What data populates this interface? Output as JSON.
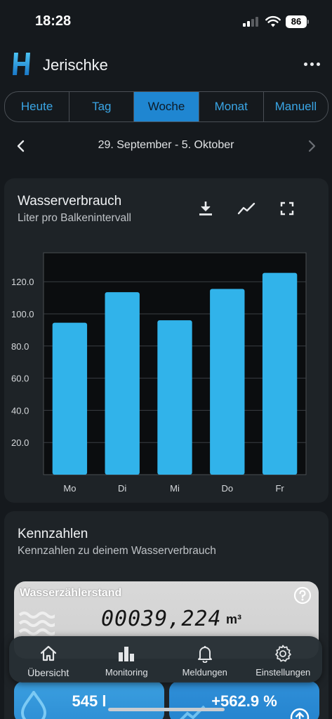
{
  "status_bar": {
    "time": "18:28",
    "battery": "86"
  },
  "header": {
    "title": "Jerischke"
  },
  "period_tabs": [
    {
      "label": "Heute",
      "active": false
    },
    {
      "label": "Tag",
      "active": false
    },
    {
      "label": "Woche",
      "active": true
    },
    {
      "label": "Monat",
      "active": false
    },
    {
      "label": "Manuell",
      "active": false
    }
  ],
  "date_nav": {
    "range": "29. September - 5. Oktober"
  },
  "consumption_card": {
    "title": "Wasserverbrauch",
    "subtitle": "Liter pro Balkenintervall",
    "actions": [
      "download-icon",
      "trend-line-icon",
      "fullscreen-icon"
    ]
  },
  "chart_data": {
    "type": "bar",
    "categories": [
      "Mo",
      "Di",
      "Mi",
      "Do",
      "Fr"
    ],
    "values": [
      94.5,
      113.5,
      96,
      115.5,
      125.5
    ],
    "yticks": [
      "20.0",
      "40.0",
      "60.0",
      "80.0",
      "100.0",
      "120.0"
    ],
    "ylim": [
      0,
      138
    ],
    "grid": true,
    "bar_color": "#31b3ea"
  },
  "kennzahlen": {
    "title": "Kennzahlen",
    "subtitle": "Kennzahlen zu deinem Wasserverbrauch",
    "meter": {
      "label": "Wasserzählerstand",
      "value": "00039,224",
      "unit": "m³"
    },
    "kpis": [
      {
        "value": "545 l"
      },
      {
        "value": "+562.9 %"
      }
    ]
  },
  "tabbar": [
    {
      "label": "Übersicht",
      "icon": "home-icon"
    },
    {
      "label": "Monitoring",
      "icon": "bar-chart-icon"
    },
    {
      "label": "Meldungen",
      "icon": "bell-icon"
    },
    {
      "label": "Einstellungen",
      "icon": "gear-icon"
    }
  ],
  "colors": {
    "accent": "#1f86d1",
    "bar": "#31b3ea",
    "background": "#15191d",
    "card": "#1e2327"
  }
}
